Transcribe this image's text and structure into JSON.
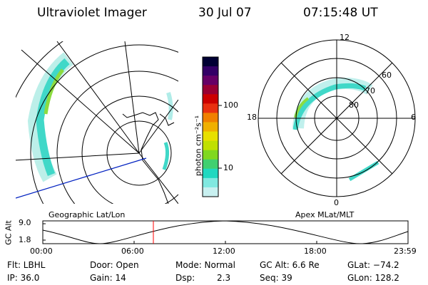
{
  "header": {
    "title": "Ultraviolet Imager",
    "date": "30 Jul 07",
    "time": "07:15:48 UT"
  },
  "panels": {
    "left_caption": "Geographic Lat/Lon",
    "right_caption": "Apex MLat/MLT"
  },
  "colorbar": {
    "unit_label": "photon cm⁻²s⁻¹",
    "ticks": [
      "100",
      "10"
    ],
    "colors": [
      "#000033",
      "#330066",
      "#660066",
      "#990033",
      "#cc0000",
      "#e83010",
      "#f08000",
      "#f0b000",
      "#e8e000",
      "#c0e000",
      "#80d820",
      "#40d070",
      "#20d8c0",
      "#80e8e0",
      "#c8f0f0"
    ]
  },
  "polar_labels": {
    "mlt": [
      "12",
      "18",
      "6",
      "0"
    ],
    "mlat": [
      "60",
      "70",
      "80"
    ]
  },
  "altitude_plot": {
    "ylabel": "GC Alt",
    "y_ticks": [
      "9.0",
      "1.8"
    ],
    "x_ticks": [
      "00:00",
      "06:00",
      "12:00",
      "18:00",
      "23:59"
    ],
    "current_marker_time": "07:15",
    "curve_color": "#000000",
    "marker_color": "#ff0000"
  },
  "info": {
    "flt": "Flt: LBHL",
    "ip": "IP: 36.0",
    "door": "Door: Open",
    "gain": "Gain: 14",
    "mode": "Mode: Normal",
    "dsp_label": "Dsp:",
    "dsp_value": "2.3",
    "gcalt": "GC Alt: 6.6 Re",
    "seq": "Seq: 39",
    "glat": "GLat: −74.2",
    "glon": "GLon: 128.2"
  }
}
